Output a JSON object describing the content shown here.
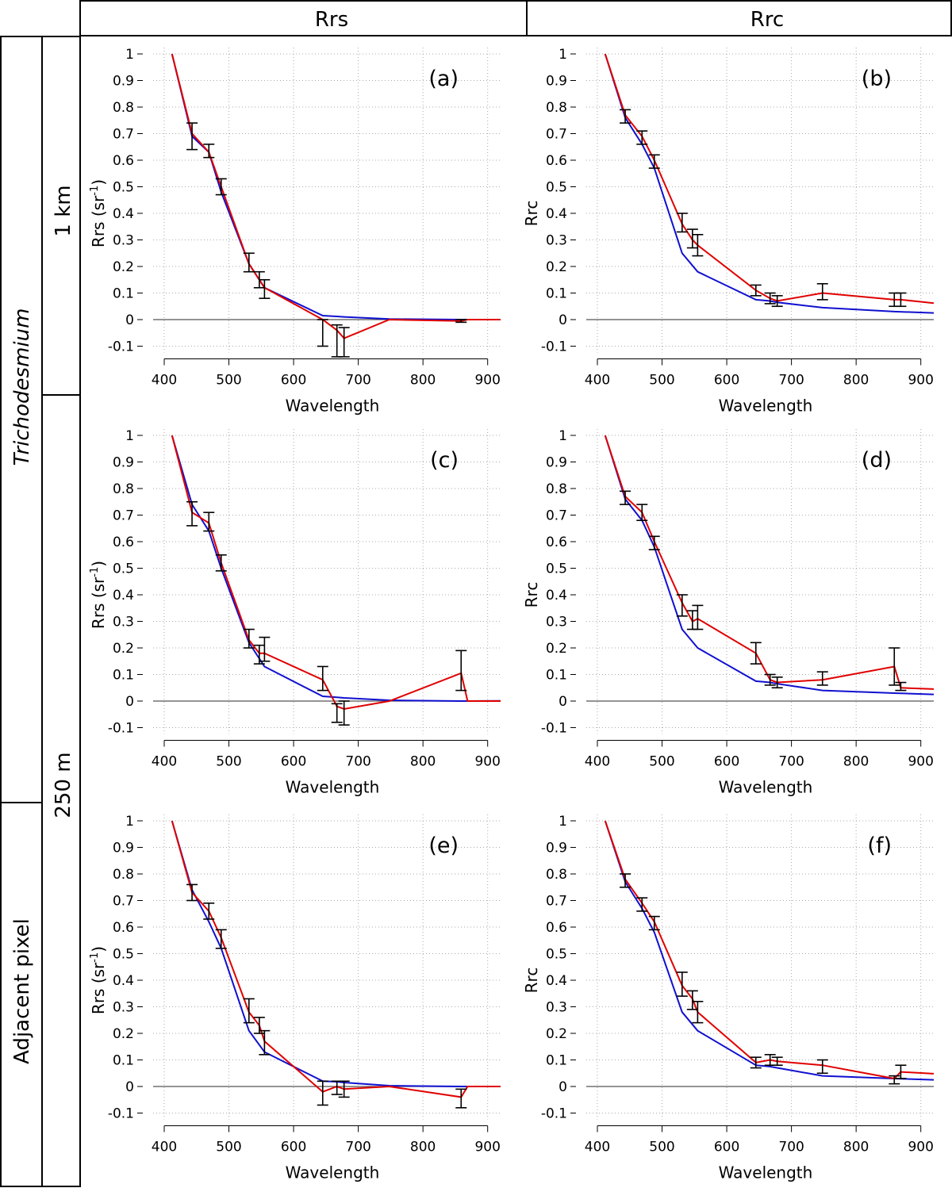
{
  "header": {
    "col1": "Rrs",
    "col2": "Rrc"
  },
  "side": {
    "group1": "Trichodesmium",
    "group2": "Adjacent pixel",
    "res1": "1 km",
    "res2": "250 m"
  },
  "colors": {
    "series1": "#e00000",
    "series2": "#1010d0",
    "zero": "#555555",
    "grid": "#aaaaaa"
  },
  "chart_data": [
    {
      "panel": "a",
      "type": "line",
      "label": "(a)",
      "xlabel": "Wavelength",
      "ylabel_main": "Rrs (sr",
      "ylabel_sup": "-1",
      "ylabel_end": ")",
      "xlim": [
        400,
        920
      ],
      "ylim": [
        -0.1,
        1.0
      ],
      "xticks": [
        "400",
        "500",
        "600",
        "700",
        "800",
        "900"
      ],
      "yticks": [
        "-0.1",
        "0",
        "0.1",
        "0.2",
        "0.3",
        "0.4",
        "0.5",
        "0.6",
        "0.7",
        "0.8",
        "0.9",
        "1"
      ],
      "series": [
        {
          "name": "red",
          "x": [
            412,
            443,
            469,
            488,
            531,
            547,
            555,
            645,
            667,
            678,
            748,
            859,
            869,
            920
          ],
          "y": [
            1.0,
            0.7,
            0.63,
            0.5,
            0.21,
            0.15,
            0.12,
            0.0,
            -0.04,
            -0.07,
            0.0,
            -0.005,
            0.0,
            0.0
          ],
          "err": [
            [
              443,
              0.64,
              0.74
            ],
            [
              469,
              0.61,
              0.66
            ],
            [
              488,
              0.47,
              0.53
            ],
            [
              531,
              0.18,
              0.25
            ],
            [
              547,
              0.12,
              0.18
            ],
            [
              555,
              0.08,
              0.15
            ],
            [
              645,
              -0.1,
              0.0
            ],
            [
              667,
              -0.14,
              -0.02
            ],
            [
              678,
              -0.14,
              -0.03
            ],
            [
              859,
              -0.01,
              0.0
            ]
          ]
        },
        {
          "name": "blue",
          "x": [
            412,
            443,
            469,
            488,
            531,
            555,
            645,
            667,
            678,
            748,
            859,
            920
          ],
          "y": [
            1.0,
            0.69,
            0.63,
            0.48,
            0.21,
            0.12,
            0.015,
            0.012,
            0.01,
            0.002,
            0.0,
            0.0
          ]
        }
      ]
    },
    {
      "panel": "b",
      "type": "line",
      "label": "(b)",
      "xlabel": "Wavelength",
      "ylabel_main": "Rrc",
      "ylabel_sup": "",
      "ylabel_end": "",
      "xlim": [
        400,
        920
      ],
      "ylim": [
        -0.1,
        1.0
      ],
      "xticks": [
        "400",
        "500",
        "600",
        "700",
        "800",
        "900"
      ],
      "yticks": [
        "-0.1",
        "0",
        "0.1",
        "0.2",
        "0.3",
        "0.4",
        "0.5",
        "0.6",
        "0.7",
        "0.8",
        "0.9",
        "1"
      ],
      "series": [
        {
          "name": "red",
          "x": [
            412,
            443,
            469,
            488,
            531,
            547,
            555,
            645,
            667,
            678,
            748,
            859,
            869,
            920
          ],
          "y": [
            1.0,
            0.77,
            0.69,
            0.6,
            0.36,
            0.3,
            0.28,
            0.11,
            0.08,
            0.07,
            0.1,
            0.075,
            0.075,
            0.062
          ],
          "err": [
            [
              443,
              0.74,
              0.79
            ],
            [
              469,
              0.66,
              0.71
            ],
            [
              488,
              0.57,
              0.62
            ],
            [
              531,
              0.33,
              0.4
            ],
            [
              547,
              0.27,
              0.34
            ],
            [
              555,
              0.24,
              0.32
            ],
            [
              645,
              0.09,
              0.13
            ],
            [
              667,
              0.06,
              0.1
            ],
            [
              678,
              0.05,
              0.09
            ],
            [
              748,
              0.075,
              0.135
            ],
            [
              859,
              0.05,
              0.1
            ],
            [
              869,
              0.05,
              0.1
            ]
          ]
        },
        {
          "name": "blue",
          "x": [
            412,
            443,
            469,
            488,
            531,
            555,
            645,
            667,
            678,
            748,
            859,
            920
          ],
          "y": [
            1.0,
            0.76,
            0.66,
            0.57,
            0.25,
            0.18,
            0.075,
            0.07,
            0.065,
            0.045,
            0.03,
            0.025
          ]
        }
      ]
    },
    {
      "panel": "c",
      "type": "line",
      "label": "(c)",
      "xlabel": "Wavelength",
      "ylabel_main": "Rrs (sr",
      "ylabel_sup": "-1",
      "ylabel_end": ")",
      "xlim": [
        400,
        920
      ],
      "ylim": [
        -0.1,
        1.0
      ],
      "xticks": [
        "400",
        "500",
        "600",
        "700",
        "800",
        "900"
      ],
      "yticks": [
        "-0.1",
        "0",
        "0.1",
        "0.2",
        "0.3",
        "0.4",
        "0.5",
        "0.6",
        "0.7",
        "0.8",
        "0.9",
        "1"
      ],
      "series": [
        {
          "name": "red",
          "x": [
            412,
            443,
            469,
            488,
            531,
            547,
            555,
            645,
            667,
            678,
            748,
            859,
            869,
            920
          ],
          "y": [
            1.0,
            0.71,
            0.67,
            0.52,
            0.23,
            0.18,
            0.18,
            0.08,
            -0.02,
            -0.03,
            0.0,
            0.105,
            0.0,
            0.0
          ],
          "err": [
            [
              443,
              0.66,
              0.75
            ],
            [
              469,
              0.64,
              0.71
            ],
            [
              488,
              0.49,
              0.55
            ],
            [
              531,
              0.2,
              0.27
            ],
            [
              547,
              0.14,
              0.21
            ],
            [
              555,
              0.15,
              0.24
            ],
            [
              645,
              0.04,
              0.13
            ],
            [
              667,
              -0.08,
              -0.01
            ],
            [
              678,
              -0.09,
              0.0
            ],
            [
              859,
              0.04,
              0.19
            ]
          ]
        },
        {
          "name": "blue",
          "x": [
            412,
            443,
            469,
            488,
            531,
            555,
            645,
            667,
            678,
            748,
            859,
            920
          ],
          "y": [
            1.0,
            0.74,
            0.64,
            0.5,
            0.22,
            0.13,
            0.018,
            0.014,
            0.012,
            0.003,
            0.0,
            0.001
          ]
        }
      ]
    },
    {
      "panel": "d",
      "type": "line",
      "label": "(d)",
      "xlabel": "Wavelength",
      "ylabel_main": "Rrc",
      "ylabel_sup": "",
      "ylabel_end": "",
      "xlim": [
        400,
        920
      ],
      "ylim": [
        -0.1,
        1.0
      ],
      "xticks": [
        "400",
        "500",
        "600",
        "700",
        "800",
        "900"
      ],
      "yticks": [
        "-0.1",
        "0",
        "0.1",
        "0.2",
        "0.3",
        "0.4",
        "0.5",
        "0.6",
        "0.7",
        "0.8",
        "0.9",
        "1"
      ],
      "series": [
        {
          "name": "red",
          "x": [
            412,
            443,
            469,
            488,
            531,
            547,
            555,
            645,
            667,
            678,
            748,
            859,
            869,
            920
          ],
          "y": [
            1.0,
            0.77,
            0.71,
            0.6,
            0.37,
            0.3,
            0.31,
            0.18,
            0.08,
            0.07,
            0.08,
            0.13,
            0.05,
            0.045
          ],
          "err": [
            [
              443,
              0.74,
              0.79
            ],
            [
              469,
              0.68,
              0.74
            ],
            [
              488,
              0.57,
              0.62
            ],
            [
              531,
              0.32,
              0.4
            ],
            [
              547,
              0.27,
              0.34
            ],
            [
              555,
              0.27,
              0.36
            ],
            [
              645,
              0.14,
              0.22
            ],
            [
              667,
              0.06,
              0.1
            ],
            [
              678,
              0.05,
              0.09
            ],
            [
              748,
              0.06,
              0.11
            ],
            [
              859,
              0.06,
              0.2
            ],
            [
              869,
              0.04,
              0.07
            ]
          ]
        },
        {
          "name": "blue",
          "x": [
            412,
            443,
            469,
            488,
            531,
            555,
            645,
            667,
            678,
            748,
            859,
            920
          ],
          "y": [
            1.0,
            0.76,
            0.68,
            0.58,
            0.27,
            0.2,
            0.075,
            0.07,
            0.065,
            0.04,
            0.03,
            0.025
          ]
        }
      ]
    },
    {
      "panel": "e",
      "type": "line",
      "label": "(e)",
      "xlabel": "Wavelength",
      "ylabel_main": "Rrs (sr",
      "ylabel_sup": "-1",
      "ylabel_end": ")",
      "xlim": [
        400,
        920
      ],
      "ylim": [
        -0.1,
        1.0
      ],
      "xticks": [
        "400",
        "500",
        "600",
        "700",
        "800",
        "900"
      ],
      "yticks": [
        "-0.1",
        "0",
        "0.1",
        "0.2",
        "0.3",
        "0.4",
        "0.5",
        "0.6",
        "0.7",
        "0.8",
        "0.9",
        "1"
      ],
      "series": [
        {
          "name": "red",
          "x": [
            412,
            443,
            469,
            488,
            531,
            547,
            555,
            645,
            667,
            678,
            748,
            859,
            869,
            920
          ],
          "y": [
            1.0,
            0.73,
            0.66,
            0.56,
            0.28,
            0.23,
            0.17,
            -0.02,
            0.0,
            -0.01,
            0.0,
            -0.04,
            0.0,
            0.0
          ],
          "err": [
            [
              443,
              0.7,
              0.76
            ],
            [
              469,
              0.63,
              0.69
            ],
            [
              488,
              0.52,
              0.59
            ],
            [
              531,
              0.24,
              0.33
            ],
            [
              547,
              0.2,
              0.26
            ],
            [
              555,
              0.12,
              0.21
            ],
            [
              645,
              -0.07,
              0.02
            ],
            [
              667,
              -0.03,
              0.02
            ],
            [
              678,
              -0.04,
              0.02
            ],
            [
              859,
              -0.08,
              -0.01
            ]
          ]
        },
        {
          "name": "blue",
          "x": [
            412,
            443,
            469,
            488,
            531,
            555,
            645,
            667,
            678,
            748,
            859,
            920
          ],
          "y": [
            1.0,
            0.74,
            0.62,
            0.52,
            0.21,
            0.13,
            0.02,
            0.018,
            0.015,
            0.003,
            0.0,
            0.0
          ]
        }
      ]
    },
    {
      "panel": "f",
      "type": "line",
      "label": "(f)",
      "xlabel": "Wavelength",
      "ylabel_main": "Rrc",
      "ylabel_sup": "",
      "ylabel_end": "",
      "xlim": [
        400,
        920
      ],
      "ylim": [
        -0.1,
        1.0
      ],
      "xticks": [
        "400",
        "500",
        "600",
        "700",
        "800",
        "900"
      ],
      "yticks": [
        "-0.1",
        "0",
        "0.1",
        "0.2",
        "0.3",
        "0.4",
        "0.5",
        "0.6",
        "0.7",
        "0.8",
        "0.9",
        "1"
      ],
      "series": [
        {
          "name": "red",
          "x": [
            412,
            443,
            469,
            488,
            531,
            547,
            555,
            645,
            667,
            678,
            748,
            859,
            869,
            920
          ],
          "y": [
            1.0,
            0.78,
            0.69,
            0.62,
            0.38,
            0.33,
            0.28,
            0.09,
            0.1,
            0.095,
            0.08,
            0.03,
            0.055,
            0.048
          ],
          "err": [
            [
              443,
              0.75,
              0.8
            ],
            [
              469,
              0.66,
              0.71
            ],
            [
              488,
              0.59,
              0.64
            ],
            [
              531,
              0.34,
              0.43
            ],
            [
              547,
              0.29,
              0.36
            ],
            [
              555,
              0.24,
              0.32
            ],
            [
              645,
              0.07,
              0.11
            ],
            [
              667,
              0.08,
              0.12
            ],
            [
              678,
              0.08,
              0.11
            ],
            [
              748,
              0.05,
              0.1
            ],
            [
              859,
              0.01,
              0.04
            ],
            [
              869,
              0.03,
              0.08
            ]
          ]
        },
        {
          "name": "blue",
          "x": [
            412,
            443,
            469,
            488,
            531,
            555,
            645,
            667,
            678,
            748,
            859,
            920
          ],
          "y": [
            1.0,
            0.77,
            0.67,
            0.58,
            0.28,
            0.21,
            0.08,
            0.075,
            0.07,
            0.04,
            0.03,
            0.025
          ]
        }
      ]
    }
  ]
}
